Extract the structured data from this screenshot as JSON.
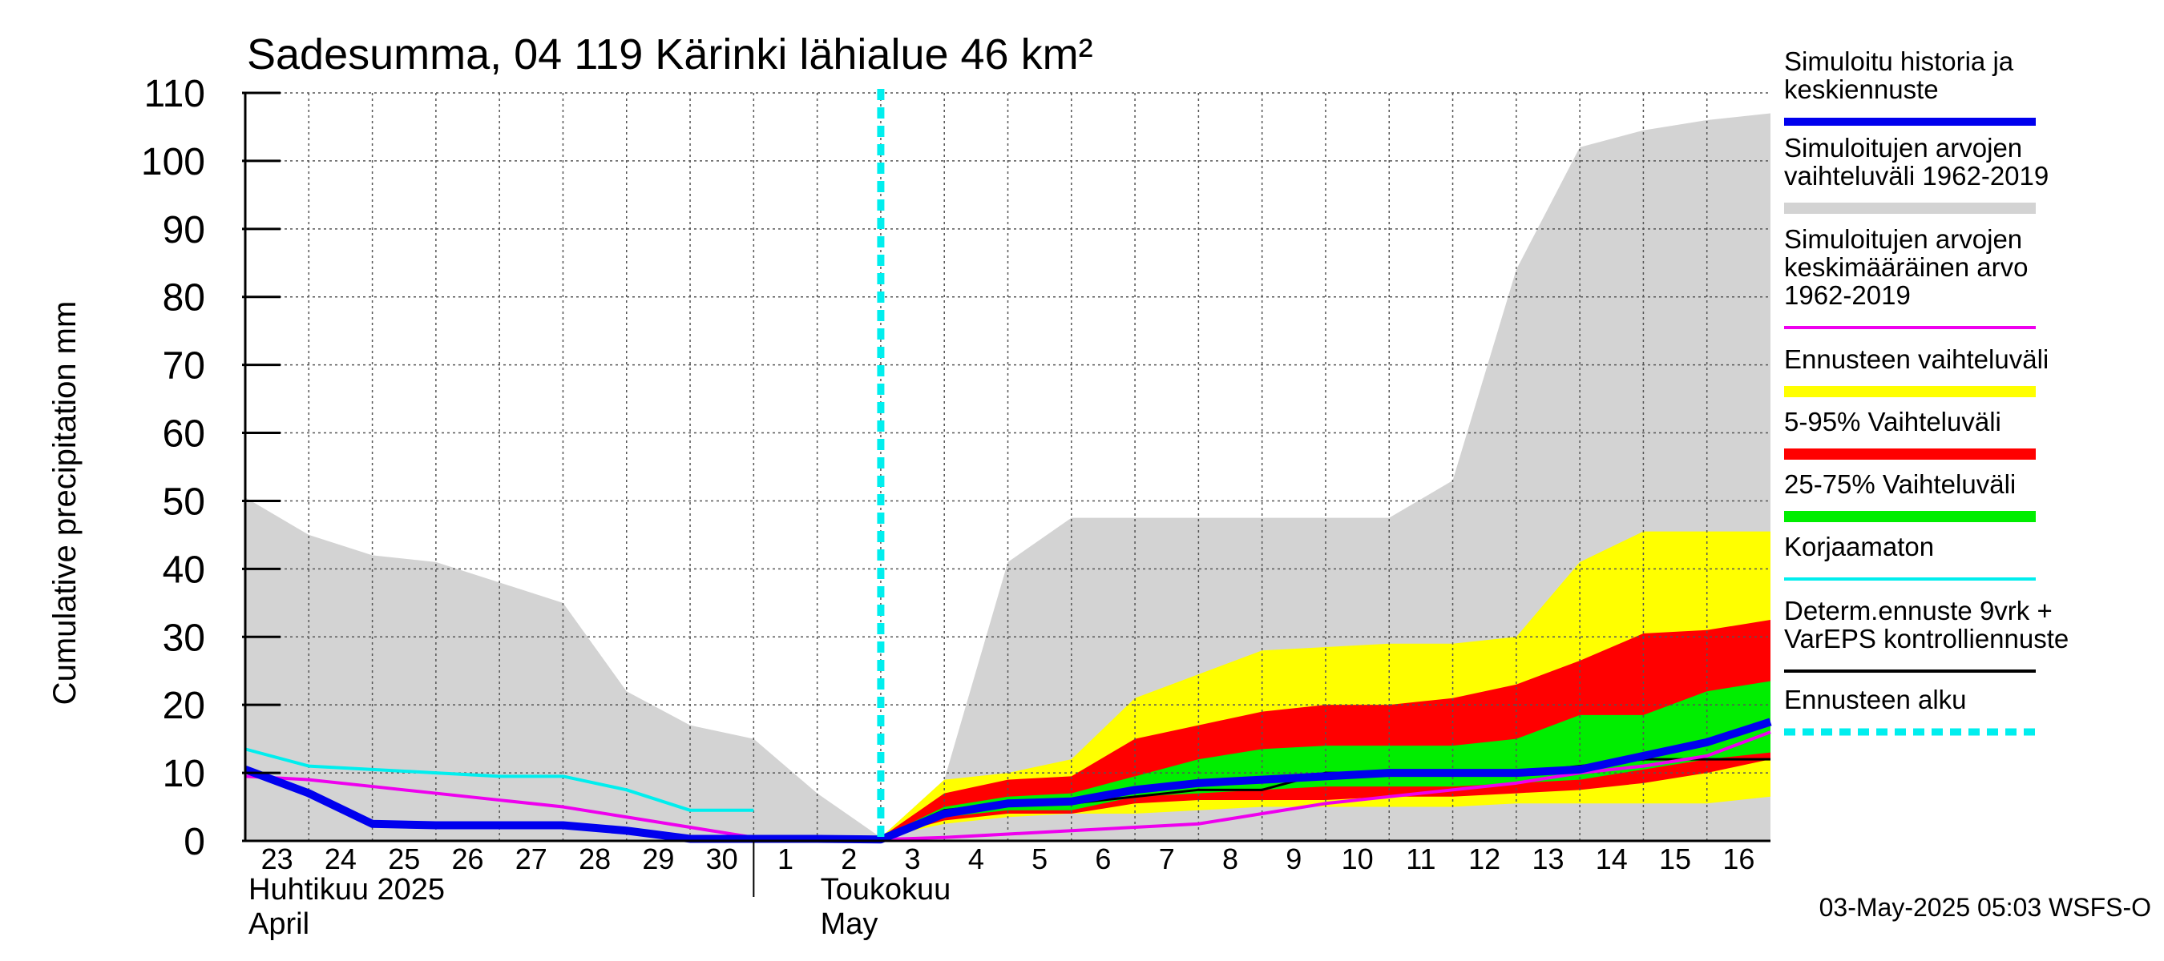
{
  "title": "Sadesumma, 04 119 Kärinki lähialue 46 km²",
  "footer": "03-May-2025 05:03 WSFS-O",
  "colors": {
    "hist_range": "#d3d3d3",
    "ens_range": "#ffff00",
    "p5_95": "#ff0000",
    "p25_75": "#00ee00",
    "sim_mean": "#ee00ee",
    "uncorrected": "#00eeee",
    "sim_history": "#0000ee",
    "determ": "#000000",
    "forecast_start": "#00eeee"
  },
  "legend": [
    {
      "key": "sim_history",
      "lines": [
        "Simuloitu historia ja",
        "keskiennuste"
      ],
      "style": "thick"
    },
    {
      "key": "hist_range",
      "lines": [
        "Simuloitujen arvojen",
        "vaihteluväli 1962-2019"
      ],
      "style": "band"
    },
    {
      "key": "sim_mean",
      "lines": [
        "Simuloitujen arvojen",
        "keskimääräinen arvo",
        "   1962-2019"
      ],
      "style": "thin"
    },
    {
      "key": "ens_range",
      "lines": [
        "Ennusteen vaihteluväli"
      ],
      "style": "band"
    },
    {
      "key": "p5_95",
      "lines": [
        "5-95% Vaihteluväli"
      ],
      "style": "band"
    },
    {
      "key": "p25_75",
      "lines": [
        "25-75% Vaihteluväli"
      ],
      "style": "band"
    },
    {
      "key": "uncorrected",
      "lines": [
        "Korjaamaton"
      ],
      "style": "thin"
    },
    {
      "key": "determ",
      "lines": [
        "Determ.ennuste 9vrk +",
        "VarEPS kontrolliennuste"
      ],
      "style": "thin"
    },
    {
      "key": "forecast_start",
      "lines": [
        "Ennusteen alku"
      ],
      "style": "dash"
    }
  ],
  "chart_data": {
    "type": "area",
    "title": "Sadesumma, 04 119 Kärinki lähialue 46 km²",
    "ylabel": "Cumulative precipitation   mm",
    "ylim": [
      0,
      110
    ],
    "yticks": [
      0,
      10,
      20,
      30,
      40,
      50,
      60,
      70,
      80,
      90,
      100,
      110
    ],
    "xlim": [
      0,
      24
    ],
    "x_tick_labels": [
      "23",
      "24",
      "25",
      "26",
      "27",
      "28",
      "29",
      "30",
      "1",
      "2",
      "3",
      "4",
      "5",
      "6",
      "7",
      "8",
      "9",
      "10",
      "11",
      "12",
      "13",
      "14",
      "15",
      "16"
    ],
    "month_labels": [
      {
        "x": 0,
        "lines": [
          "Huhtikuu  2025",
          "April"
        ]
      },
      {
        "x": 9,
        "lines": [
          "Toukokuu",
          "May"
        ]
      }
    ],
    "month_divider_x": 8,
    "forecast_start_x": 10,
    "grid": true,
    "legend_position": "right",
    "series": [
      {
        "key": "hist_range",
        "type": "band",
        "x": [
          0,
          1,
          2,
          3,
          4,
          5,
          6,
          7,
          8,
          9,
          10,
          11,
          12,
          13,
          14,
          15,
          16,
          17,
          18,
          19,
          20,
          21,
          22,
          23,
          24
        ],
        "upper": [
          50.5,
          45,
          42,
          41,
          38,
          35,
          22,
          17,
          15,
          7,
          0.5,
          9,
          41,
          47.5,
          47.5,
          47.5,
          47.5,
          47.5,
          47.5,
          53,
          84,
          102,
          104.5,
          106,
          107
        ],
        "lower": [
          0,
          0,
          0,
          0,
          0,
          0,
          0,
          0,
          0,
          0,
          0,
          0,
          0,
          0,
          0,
          0,
          0,
          0,
          0,
          0,
          0,
          0,
          0,
          0,
          0
        ]
      },
      {
        "key": "ens_range",
        "type": "band",
        "x": [
          10,
          11,
          12,
          13,
          14,
          15,
          16,
          17,
          18,
          19,
          20,
          21,
          22,
          23,
          24
        ],
        "upper": [
          0.5,
          9,
          10,
          12,
          21,
          24.5,
          28,
          28.5,
          29,
          29,
          30,
          41,
          45.5,
          45.5,
          45.5
        ],
        "lower": [
          0.5,
          2.5,
          3.5,
          4,
          4,
          4.5,
          5,
          5,
          5,
          5,
          5.5,
          5.5,
          5.5,
          5.5,
          6.5
        ]
      },
      {
        "key": "p5_95",
        "type": "band",
        "x": [
          10,
          11,
          12,
          13,
          14,
          15,
          16,
          17,
          18,
          19,
          20,
          21,
          22,
          23,
          24
        ],
        "upper": [
          0.5,
          7,
          9,
          9.5,
          15,
          17,
          19,
          20,
          20,
          21,
          23,
          26.5,
          30.5,
          31,
          32.5
        ],
        "lower": [
          0.5,
          3,
          4,
          4,
          5.5,
          6,
          6,
          6,
          6.5,
          6.5,
          7,
          7.5,
          8.5,
          10,
          12
        ]
      },
      {
        "key": "p25_75",
        "type": "band",
        "x": [
          10,
          11,
          12,
          13,
          14,
          15,
          16,
          17,
          18,
          19,
          20,
          21,
          22,
          23,
          24
        ],
        "upper": [
          0.5,
          5,
          6.5,
          7,
          9.5,
          12,
          13.5,
          14,
          14,
          14,
          15,
          18.5,
          18.5,
          22,
          23.5
        ],
        "lower": [
          0.5,
          3.5,
          4.5,
          4.5,
          6.5,
          7,
          7.5,
          8,
          8,
          8,
          8.5,
          9,
          10.5,
          12,
          13
        ]
      },
      {
        "key": "determ",
        "type": "line",
        "x": [
          10,
          11,
          12,
          13,
          14,
          15,
          16,
          17,
          18,
          19,
          20,
          21,
          22,
          23,
          24
        ],
        "values": [
          0.5,
          4.5,
          5.5,
          5.5,
          6.5,
          7.5,
          7.5,
          10,
          10,
          10,
          10,
          11,
          12,
          12,
          12
        ]
      },
      {
        "key": "uncorrected",
        "type": "line",
        "x": [
          0,
          1,
          2,
          3,
          4,
          5,
          6,
          7,
          8
        ],
        "values": [
          13.5,
          11,
          10.5,
          10,
          9.5,
          9.5,
          7.5,
          4.5,
          4.5
        ]
      },
      {
        "key": "sim_mean",
        "type": "line",
        "x": [
          0,
          1,
          2,
          3,
          4,
          5,
          6,
          7,
          8,
          9,
          10,
          11,
          12,
          13,
          14,
          15,
          16,
          17,
          18,
          19,
          20,
          21,
          22,
          23,
          24
        ],
        "values": [
          9.5,
          9,
          8,
          7,
          6,
          5,
          3.5,
          2,
          0.5,
          0.3,
          0.2,
          0.5,
          1,
          1.5,
          2,
          2.5,
          4,
          5.5,
          6.5,
          7.5,
          8.5,
          10,
          11,
          12.5,
          16
        ]
      },
      {
        "key": "sim_history",
        "type": "line",
        "x": [
          0,
          1,
          2,
          3,
          4,
          5,
          6,
          7,
          8,
          9,
          10,
          11,
          12,
          13,
          14,
          15,
          16,
          17,
          18,
          19,
          20,
          21,
          22,
          23,
          24
        ],
        "values": [
          10.5,
          7,
          2.5,
          2.3,
          2.3,
          2.3,
          1.5,
          0.3,
          0.3,
          0.3,
          0.2,
          4,
          5.5,
          5.8,
          7.5,
          8.5,
          9,
          9.5,
          10,
          10,
          10,
          10.5,
          12.5,
          14.5,
          17.5
        ]
      }
    ]
  }
}
